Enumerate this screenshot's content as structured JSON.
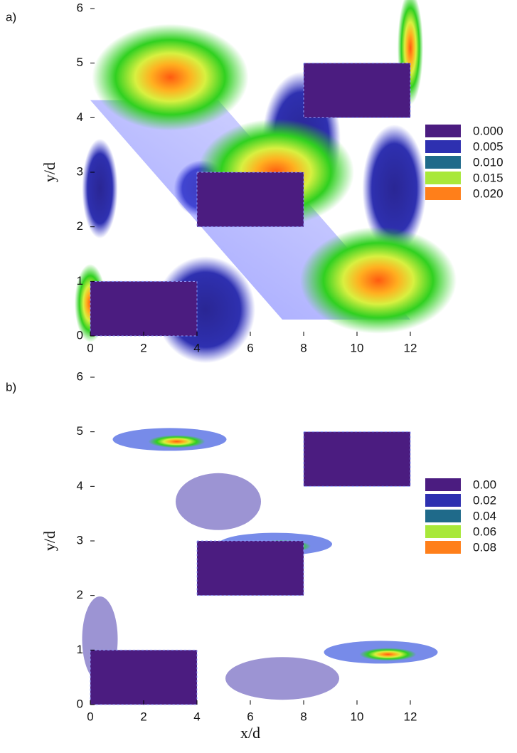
{
  "chart_data": [
    {
      "type": "contour",
      "panel_label": "a)",
      "ylabel": "y/d",
      "xlim": [
        0,
        12
      ],
      "ylim": [
        0,
        6
      ],
      "xticks": [
        0,
        2,
        4,
        6,
        8,
        10,
        12
      ],
      "yticks": [
        0,
        1,
        2,
        3,
        4,
        5,
        6
      ],
      "obstacles": {
        "x0": [
          0,
          4,
          8
        ],
        "x1": [
          4,
          8,
          12
        ],
        "y0": [
          0,
          2,
          4
        ],
        "y1": [
          1,
          3,
          5
        ]
      },
      "levels": [
        0,
        0.005,
        0.01,
        0.015,
        0.02
      ],
      "value_labels": [
        "0.000",
        "0.005",
        "0.010",
        "0.015",
        "0.020"
      ],
      "colors": [
        "#4b1c80",
        "#2e30b0",
        "#1f6a8a",
        "#a8e83a",
        "#ff7f1a"
      ]
    },
    {
      "type": "contour",
      "panel_label": "b)",
      "ylabel": "y/d",
      "xlabel": "x/d",
      "xlim": [
        0,
        12
      ],
      "ylim": [
        0,
        6
      ],
      "xticks": [
        0,
        2,
        4,
        6,
        8,
        10,
        12
      ],
      "yticks": [
        0,
        1,
        2,
        3,
        4,
        5,
        6
      ],
      "obstacles": {
        "x0": [
          0,
          4,
          8
        ],
        "x1": [
          4,
          8,
          12
        ],
        "y0": [
          0,
          2,
          4
        ],
        "y1": [
          1,
          3,
          5
        ]
      },
      "levels": [
        0,
        0.02,
        0.04,
        0.06,
        0.08
      ],
      "value_labels": [
        "0.00",
        "0.02",
        "0.04",
        "0.06",
        "0.08"
      ],
      "colors": [
        "#4b1c80",
        "#2e30b0",
        "#1f6a8a",
        "#a8e83a",
        "#ff7f1a"
      ]
    }
  ]
}
